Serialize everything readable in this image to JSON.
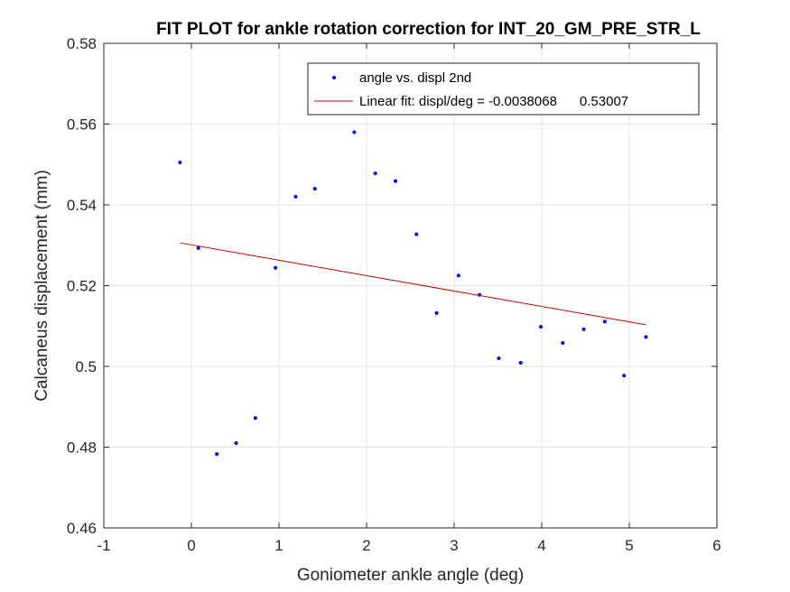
{
  "chart_data": {
    "type": "scatter",
    "title": "FIT PLOT for ankle rotation correction for INT_20_GM_PRE_STR_L",
    "xlabel": "Goniometer ankle angle (deg)",
    "ylabel": "Calcaneus displacement (mm)",
    "xlim": [
      -1,
      6
    ],
    "ylim": [
      0.46,
      0.58
    ],
    "x_ticks": [
      -1,
      0,
      1,
      2,
      3,
      4,
      5,
      6
    ],
    "x_tick_labels": [
      "-1",
      "0",
      "1",
      "2",
      "3",
      "4",
      "5",
      "6"
    ],
    "y_ticks": [
      0.46,
      0.48,
      0.5,
      0.52,
      0.54,
      0.56,
      0.58
    ],
    "y_tick_labels": [
      "0.46",
      "0.48",
      "0.5",
      "0.52",
      "0.54",
      "0.56",
      "0.58"
    ],
    "grid": true,
    "legend_position": "top-right",
    "series": [
      {
        "name": "angle vs. displ 2nd",
        "kind": "scatter",
        "color": "#0000ff",
        "points": [
          [
            -0.13,
            0.5505
          ],
          [
            0.08,
            0.5293
          ],
          [
            0.29,
            0.4783
          ],
          [
            0.51,
            0.481
          ],
          [
            0.73,
            0.4872
          ],
          [
            0.96,
            0.5244
          ],
          [
            1.19,
            0.542
          ],
          [
            1.41,
            0.544
          ],
          [
            1.86,
            0.558
          ],
          [
            2.1,
            0.5478
          ],
          [
            2.33,
            0.5459
          ],
          [
            2.57,
            0.5327
          ],
          [
            2.8,
            0.5132
          ],
          [
            3.05,
            0.5225
          ],
          [
            3.29,
            0.5177
          ],
          [
            3.51,
            0.502
          ],
          [
            3.76,
            0.5009
          ],
          [
            3.99,
            0.5098
          ],
          [
            4.24,
            0.5058
          ],
          [
            4.48,
            0.5092
          ],
          [
            4.72,
            0.5111
          ],
          [
            4.94,
            0.4977
          ],
          [
            5.19,
            0.5073
          ]
        ]
      },
      {
        "name": "Linear fit: displ/deg = -0.0038068      0.53007",
        "kind": "line",
        "color": "#cc0000",
        "points": [
          [
            -0.13,
            0.5306
          ],
          [
            5.19,
            0.5103
          ]
        ]
      }
    ]
  }
}
